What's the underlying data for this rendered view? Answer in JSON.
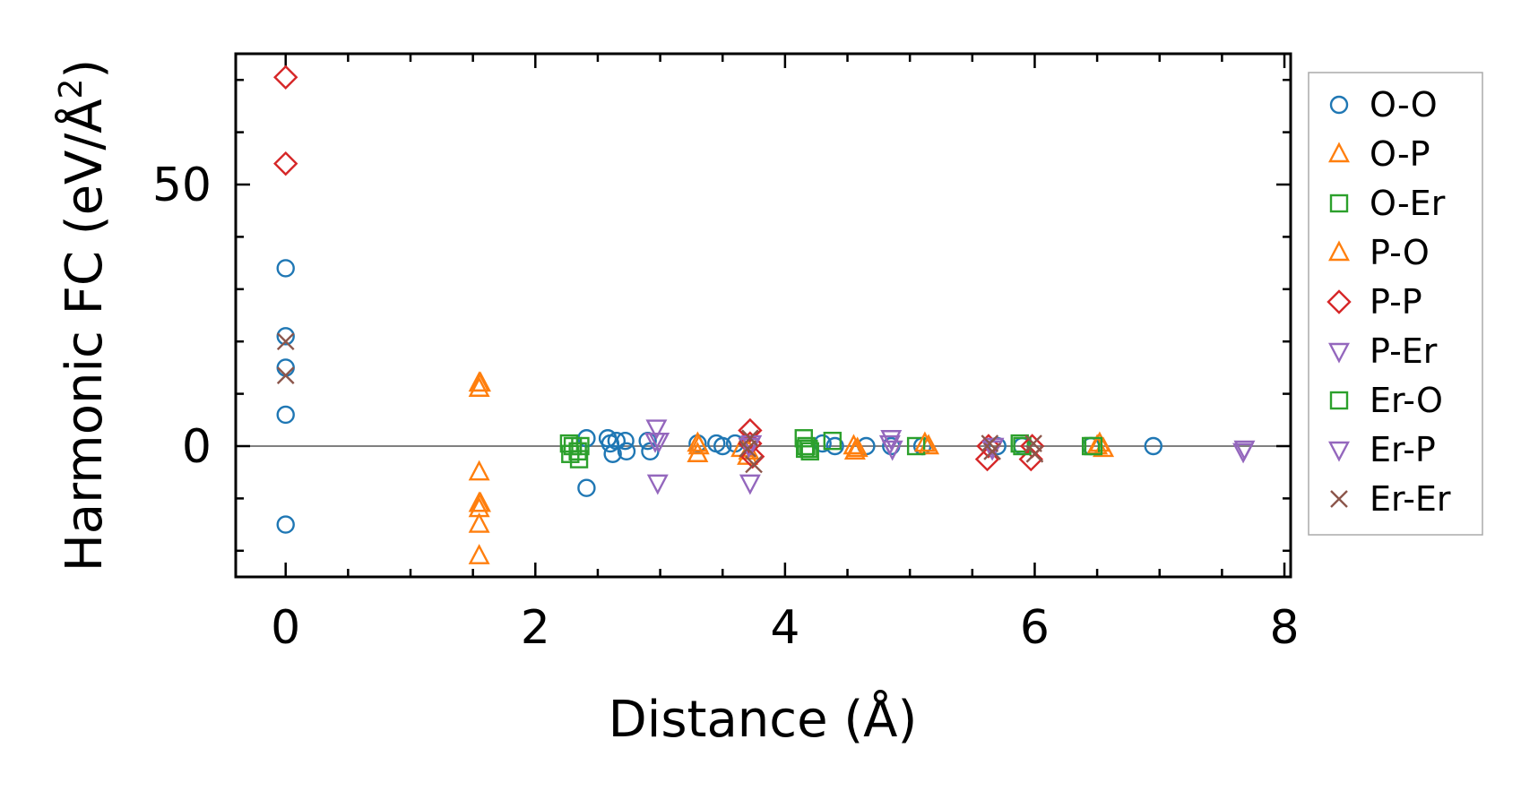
{
  "chart_data": {
    "type": "scatter",
    "title": "",
    "xlabel": "Distance (Å)",
    "ylabel_main": "Harmonic FC (eV/Å",
    "ylabel_sup": "2",
    "ylabel_close": ")",
    "xlim": [
      -0.4,
      8.05
    ],
    "ylim": [
      -25,
      75
    ],
    "x_ticks": [
      0,
      2,
      4,
      6,
      8
    ],
    "x_tick_labels": [
      "0",
      "2",
      "4",
      "6",
      "8"
    ],
    "y_ticks": [
      0,
      50
    ],
    "y_tick_labels": [
      "0",
      "50"
    ],
    "x_minor_step": 0.5,
    "y_minor_step": 10,
    "zero_line": true,
    "grid": false,
    "legend_position": "outside right",
    "series": [
      {
        "name": "O-O",
        "marker": "circle",
        "color": "#1f77b4",
        "points": [
          [
            0,
            34
          ],
          [
            0,
            21
          ],
          [
            0,
            15
          ],
          [
            0,
            6
          ],
          [
            0,
            -15
          ],
          [
            2.41,
            1.5
          ],
          [
            2.41,
            -8
          ],
          [
            2.58,
            1.5
          ],
          [
            2.6,
            0.5
          ],
          [
            2.62,
            -1.5
          ],
          [
            2.65,
            1
          ],
          [
            2.72,
            1
          ],
          [
            2.73,
            -1
          ],
          [
            2.9,
            1
          ],
          [
            2.92,
            -1
          ],
          [
            3.3,
            0.5
          ],
          [
            3.45,
            0.5
          ],
          [
            3.5,
            0
          ],
          [
            3.6,
            0.5
          ],
          [
            4.3,
            0.5
          ],
          [
            4.4,
            0
          ],
          [
            4.65,
            0
          ],
          [
            4.85,
            0
          ],
          [
            5.1,
            0
          ],
          [
            5.7,
            0
          ],
          [
            5.9,
            0
          ],
          [
            6.45,
            0
          ],
          [
            6.95,
            0
          ]
        ]
      },
      {
        "name": "O-P",
        "marker": "triangle-up",
        "color": "#ff7f0e",
        "points": [
          [
            1.55,
            12
          ],
          [
            1.55,
            11
          ],
          [
            1.55,
            -5
          ],
          [
            1.55,
            -11
          ],
          [
            1.55,
            -12
          ],
          [
            1.55,
            -15
          ],
          [
            1.55,
            -21
          ],
          [
            3.3,
            0.5
          ],
          [
            3.3,
            -1.5
          ],
          [
            3.65,
            -0.5
          ],
          [
            3.7,
            -2
          ],
          [
            4.55,
            0
          ],
          [
            4.56,
            -1
          ],
          [
            5.15,
            0
          ],
          [
            6.52,
            0.5
          ],
          [
            6.55,
            -0.5
          ]
        ]
      },
      {
        "name": "O-Er",
        "marker": "square",
        "color": "#2ca02c",
        "points": [
          [
            2.27,
            0.5
          ],
          [
            2.28,
            -1.5
          ],
          [
            2.35,
            -2.5
          ],
          [
            2.36,
            0
          ],
          [
            4.15,
            1.5
          ],
          [
            4.16,
            -0.5
          ],
          [
            4.2,
            -1
          ],
          [
            4.38,
            1
          ],
          [
            5.05,
            0
          ],
          [
            5.88,
            0.5
          ],
          [
            6.45,
            0
          ]
        ]
      },
      {
        "name": "P-O",
        "marker": "triangle-up",
        "color": "#ff7f0e",
        "points": [
          [
            1.56,
            12
          ],
          [
            1.56,
            -11
          ],
          [
            3.31,
            0
          ],
          [
            3.71,
            -1
          ],
          [
            4.58,
            -0.5
          ],
          [
            5.12,
            0.5
          ],
          [
            6.5,
            0
          ]
        ]
      },
      {
        "name": "P-P",
        "marker": "diamond",
        "color": "#d62728",
        "points": [
          [
            0,
            70.5
          ],
          [
            0,
            54
          ],
          [
            3.72,
            3
          ],
          [
            3.72,
            0.5
          ],
          [
            3.74,
            -2
          ],
          [
            5.62,
            -2.5
          ],
          [
            5.63,
            0
          ],
          [
            5.97,
            -2.5
          ],
          [
            5.98,
            0
          ]
        ]
      },
      {
        "name": "P-Er",
        "marker": "triangle-down",
        "color": "#9467bd",
        "points": [
          [
            2.97,
            3.5
          ],
          [
            2.99,
            1
          ],
          [
            2.98,
            -7
          ],
          [
            3.72,
            -7
          ],
          [
            3.73,
            0.5
          ],
          [
            4.85,
            1.5
          ],
          [
            4.86,
            -0.5
          ],
          [
            5.67,
            0
          ],
          [
            7.68,
            -0.5
          ]
        ]
      },
      {
        "name": "Er-O",
        "marker": "square",
        "color": "#2ca02c",
        "points": [
          [
            2.3,
            0
          ],
          [
            2.34,
            -1
          ],
          [
            4.17,
            0
          ],
          [
            4.19,
            -0.5
          ],
          [
            5.9,
            0
          ],
          [
            6.47,
            0
          ]
        ]
      },
      {
        "name": "Er-P",
        "marker": "triangle-down",
        "color": "#9467bd",
        "points": [
          [
            2.96,
            1
          ],
          [
            3.71,
            0
          ],
          [
            4.84,
            0.5
          ],
          [
            5.66,
            -0.5
          ],
          [
            7.67,
            -1
          ]
        ]
      },
      {
        "name": "Er-Er",
        "marker": "x",
        "color": "#8c564b",
        "points": [
          [
            0,
            20
          ],
          [
            0,
            13.5
          ],
          [
            3.72,
            1.5
          ],
          [
            3.7,
            -0.5
          ],
          [
            3.75,
            -3.5
          ],
          [
            5.64,
            0.5
          ],
          [
            5.66,
            -1
          ],
          [
            5.99,
            0.5
          ],
          [
            6.0,
            -1.5
          ]
        ]
      }
    ]
  }
}
